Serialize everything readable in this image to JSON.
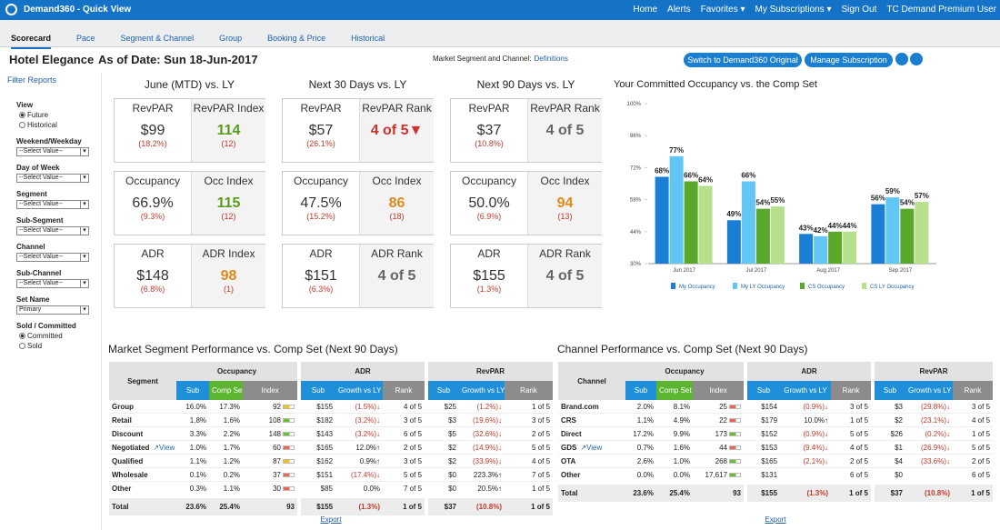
{
  "header": {
    "app_title": "Demand360 - Quick View",
    "links": [
      {
        "text": "Home"
      },
      {
        "text": "Alerts"
      },
      {
        "text": "Favorites",
        "menu": true
      },
      {
        "text": "My Subscriptions",
        "menu": true
      },
      {
        "text": "Sign Out"
      },
      {
        "text": "TC Demand Premium User"
      }
    ]
  },
  "tabs": {
    "items": [
      "Scorecard",
      "Pace",
      "Segment & Channel",
      "Group",
      "Booking & Price",
      "Historical"
    ],
    "active": 0
  },
  "toolbar": {
    "hotel": "Hotel Elegance",
    "as_of": "As of Date: Sun 18-Jun-2017",
    "definitions_label": "Market Segment and Channel:",
    "definitions_link": "Definitions",
    "buttons": [
      "Switch to Demand360 Original",
      "Manage Subscription"
    ]
  },
  "filters": {
    "title": "Filter Reports",
    "view": {
      "label": "View",
      "options": [
        "Future",
        "Historical"
      ],
      "selected": 0
    },
    "selects": [
      {
        "label": "Weekend/Weekday",
        "value": "--Select Value--"
      },
      {
        "label": "Day of Week",
        "value": "--Select Value--"
      },
      {
        "label": "Segment",
        "value": "--Select Value--"
      },
      {
        "label": "Sub-Segment",
        "value": "--Select Value--"
      },
      {
        "label": "Channel",
        "value": "--Select Value--"
      },
      {
        "label": "Sub-Channel",
        "value": "--Select Value--"
      },
      {
        "label": "Set Name",
        "value": "Primary"
      }
    ],
    "sold": {
      "label": "Sold / Committed",
      "options": [
        "Committed",
        "Sold"
      ],
      "selected": 0
    }
  },
  "scorecard": [
    {
      "title": "June (MTD) vs. LY",
      "cards": [
        {
          "left": {
            "label": "RevPAR",
            "value": "$99",
            "change": "(18.2%)"
          },
          "right": {
            "label": "RevPAR Index",
            "value": "114",
            "change": "(12)",
            "color": "#5a9a1c"
          }
        },
        {
          "left": {
            "label": "Occupancy",
            "value": "66.9%",
            "change": "(9.3%)"
          },
          "right": {
            "label": "Occ Index",
            "value": "115",
            "change": "(12)",
            "color": "#5a9a1c"
          }
        },
        {
          "left": {
            "label": "ADR",
            "value": "$148",
            "change": "(6.8%)"
          },
          "right": {
            "label": "ADR Index",
            "value": "98",
            "change": "(1)",
            "color": "#e08a1e"
          }
        }
      ]
    },
    {
      "title": "Next 30 Days vs. LY",
      "cards": [
        {
          "left": {
            "label": "RevPAR",
            "value": "$57",
            "change": "(26.1%)"
          },
          "right": {
            "label": "RevPAR Rank",
            "value": "4 of 5▼",
            "color": "#d0312d"
          }
        },
        {
          "left": {
            "label": "Occupancy",
            "value": "47.5%",
            "change": "(15.2%)"
          },
          "right": {
            "label": "Occ Index",
            "value": "86",
            "change": "(18)",
            "color": "#e08a1e"
          }
        },
        {
          "left": {
            "label": "ADR",
            "value": "$151",
            "change": "(6.3%)"
          },
          "right": {
            "label": "ADR Rank",
            "value": "4 of 5",
            "color": "#666666"
          }
        }
      ]
    },
    {
      "title": "Next 90 Days vs. LY",
      "cards": [
        {
          "left": {
            "label": "RevPAR",
            "value": "$37",
            "change": "(10.8%)"
          },
          "right": {
            "label": "RevPAR Rank",
            "value": "4 of 5",
            "color": "#666666"
          }
        },
        {
          "left": {
            "label": "Occupancy",
            "value": "50.0%",
            "change": "(6.9%)"
          },
          "right": {
            "label": "Occ Index",
            "value": "94",
            "change": "(13)",
            "color": "#e08a1e"
          }
        },
        {
          "left": {
            "label": "ADR",
            "value": "$155",
            "change": "(1.3%)"
          },
          "right": {
            "label": "ADR Rank",
            "value": "4 of 5",
            "color": "#666666"
          }
        }
      ]
    }
  ],
  "chart_data": {
    "type": "bar",
    "title": "Your Committed Occupancy vs. the Comp Set",
    "categories": [
      "Jun 2017",
      "Jul 2017",
      "Aug 2017",
      "Sep 2017"
    ],
    "series": [
      {
        "name": "My Occupancy",
        "color": "#1a7fd4",
        "values": [
          68,
          49,
          43,
          56
        ],
        "value_labels": [
          "68%",
          "49%",
          "43%",
          "56%"
        ]
      },
      {
        "name": "My LY Occupancy",
        "color": "#62c6f5",
        "values": [
          77,
          66,
          42,
          59
        ],
        "value_labels": [
          "77%",
          "66%",
          "42%",
          "59%"
        ]
      },
      {
        "name": "CS Occupancy",
        "color": "#5aa82a",
        "values": [
          66,
          54,
          44,
          54
        ],
        "value_labels": [
          "66%",
          "54%",
          "44%",
          "54%"
        ]
      },
      {
        "name": "CS LY Occupancy",
        "color": "#b6e08c",
        "values": [
          64,
          55,
          44,
          57
        ],
        "value_labels": [
          "64%",
          "55%",
          "44%",
          "57%"
        ]
      }
    ],
    "ylim": [
      30,
      100
    ],
    "yticks": [
      {
        "value": 30,
        "label": "30%"
      },
      {
        "value": 44,
        "label": "44%"
      },
      {
        "value": 58,
        "label": "58%"
      },
      {
        "value": 72,
        "label": "72%"
      },
      {
        "value": 86,
        "label": "86%"
      },
      {
        "value": 100,
        "label": "100%"
      }
    ],
    "legend": "bottom"
  },
  "tables": [
    {
      "title": "Market Segment Performance vs. Comp Set (Next 90 Days)",
      "row_header": "Segment",
      "groups": [
        {
          "name": "Occupancy",
          "columns": [
            {
              "label": "Sub",
              "color": "#1e8fd8"
            },
            {
              "label": "Comp Set",
              "color": "#5cb531"
            },
            {
              "label": "Index",
              "color": "#8c8c8c"
            }
          ]
        },
        {
          "name": "ADR",
          "columns": [
            {
              "label": "Sub",
              "color": "#1e8fd8"
            },
            {
              "label": "Growth vs LY",
              "color": "#1e8fd8"
            },
            {
              "label": "Rank",
              "color": "#8c8c8c"
            }
          ]
        },
        {
          "name": "RevPAR",
          "columns": [
            {
              "label": "Sub",
              "color": "#1e8fd8"
            },
            {
              "label": "Growth vs LY",
              "color": "#1e8fd8"
            },
            {
              "label": "Rank",
              "color": "#8c8c8c"
            }
          ]
        }
      ],
      "rows": [
        {
          "name": "Group",
          "cells": [
            "16.0%",
            "17.3%",
            "92",
            "$155",
            "(1.5%)↓",
            "4 of 5",
            "$25",
            "(1.2%)↓",
            "1 of 5"
          ],
          "index_color": "#efc21c"
        },
        {
          "name": "Retail",
          "cells": [
            "1.8%",
            "1.6%",
            "108",
            "$182",
            "(3.2%)↓",
            "3 of 5",
            "$3",
            "(19.6%)↓",
            "3 of 5"
          ],
          "index_color": "#6cbf2e"
        },
        {
          "name": "Discount",
          "cells": [
            "3.3%",
            "2.2%",
            "148",
            "$143",
            "(3.2%)↓",
            "6 of 5",
            "$5",
            "(32.6%)↓",
            "2 of 5"
          ],
          "index_color": "#6cbf2e"
        },
        {
          "name": "Negotiated",
          "link": "View",
          "cells": [
            "1.0%",
            "1.7%",
            "60",
            "$165",
            "12.0%↑",
            "2 of 5",
            "$2",
            "(14.9%)↓",
            "5 of 5"
          ],
          "index_color": "#e8675a"
        },
        {
          "name": "Qualified",
          "cells": [
            "1.1%",
            "1.2%",
            "87",
            "$162",
            "0.9%↑",
            "3 of 5",
            "$2",
            "(33.9%)↓",
            "4 of 5"
          ],
          "index_color": "#efc21c"
        },
        {
          "name": "Wholesale",
          "cells": [
            "0.1%",
            "0.2%",
            "37",
            "$151",
            "(17.4%)↓",
            "5 of 5",
            "$0",
            "223.3%↑",
            "7 of 5"
          ],
          "index_color": "#e8675a"
        },
        {
          "name": "Other",
          "cells": [
            "0.3%",
            "1.1%",
            "30",
            "$85",
            "0.0%",
            "7 of 5",
            "$0",
            "20.5%↑",
            "1 of 5"
          ],
          "index_color": "#e8675a"
        }
      ],
      "total": {
        "name": "Total",
        "cells": [
          "23.6%",
          "25.4%",
          "93",
          "$155",
          "(1.3%)",
          "1 of 5",
          "$37",
          "(10.8%)",
          "1 of 5"
        ]
      },
      "export": "Export"
    },
    {
      "title": "Channel Performance vs. Comp Set (Next 90 Days)",
      "row_header": "Channel",
      "groups": [
        {
          "name": "Occupancy",
          "columns": [
            {
              "label": "Sub",
              "color": "#1e8fd8"
            },
            {
              "label": "Comp Set",
              "color": "#5cb531"
            },
            {
              "label": "Index",
              "color": "#8c8c8c"
            }
          ]
        },
        {
          "name": "ADR",
          "columns": [
            {
              "label": "Sub",
              "color": "#1e8fd8"
            },
            {
              "label": "Growth vs LY",
              "color": "#1e8fd8"
            },
            {
              "label": "Rank",
              "color": "#8c8c8c"
            }
          ]
        },
        {
          "name": "RevPAR",
          "columns": [
            {
              "label": "Sub",
              "color": "#1e8fd8"
            },
            {
              "label": "Growth vs LY",
              "color": "#1e8fd8"
            },
            {
              "label": "Rank",
              "color": "#8c8c8c"
            }
          ]
        }
      ],
      "rows": [
        {
          "name": "Brand.com",
          "cells": [
            "2.0%",
            "8.1%",
            "25",
            "$154",
            "(0.9%)↓",
            "3 of 5",
            "$3",
            "(29.8%)↓",
            "3 of 5"
          ],
          "index_color": "#e8675a"
        },
        {
          "name": "CRS",
          "cells": [
            "1.1%",
            "4.9%",
            "22",
            "$179",
            "10.0%↑",
            "1 of 5",
            "$2",
            "(23.1%)↓",
            "4 of 5"
          ],
          "index_color": "#e8675a"
        },
        {
          "name": "Direct",
          "cells": [
            "17.2%",
            "9.9%",
            "173",
            "$152",
            "(0.9%)↓",
            "5 of 5",
            "$26",
            "(0.2%)↓",
            "1 of 5"
          ],
          "index_color": "#6cbf2e"
        },
        {
          "name": "GDS",
          "link": "View",
          "cells": [
            "0.7%",
            "1.6%",
            "44",
            "$153",
            "(9.4%)↓",
            "4 of 5",
            "$1",
            "(26.9%)↓",
            "5 of 5"
          ],
          "index_color": "#e8675a"
        },
        {
          "name": "OTA",
          "cells": [
            "2.6%",
            "1.0%",
            "268",
            "$165",
            "(2.1%)↓",
            "2 of 5",
            "$4",
            "(33.6%)↓",
            "2 of 5"
          ],
          "index_color": "#6cbf2e"
        },
        {
          "name": "Other",
          "cells": [
            "0.0%",
            "0.0%",
            "17,617",
            "$131",
            null,
            "6 of 5",
            "$0",
            null,
            "6 of 5"
          ],
          "index_color": "#6cbf2e"
        }
      ],
      "total": {
        "name": "Total",
        "cells": [
          "23.6%",
          "25.4%",
          "93",
          "$155",
          "(1.3%)",
          "1 of 5",
          "$37",
          "(10.8%)",
          "1 of 5"
        ]
      },
      "export": "Export"
    }
  ]
}
